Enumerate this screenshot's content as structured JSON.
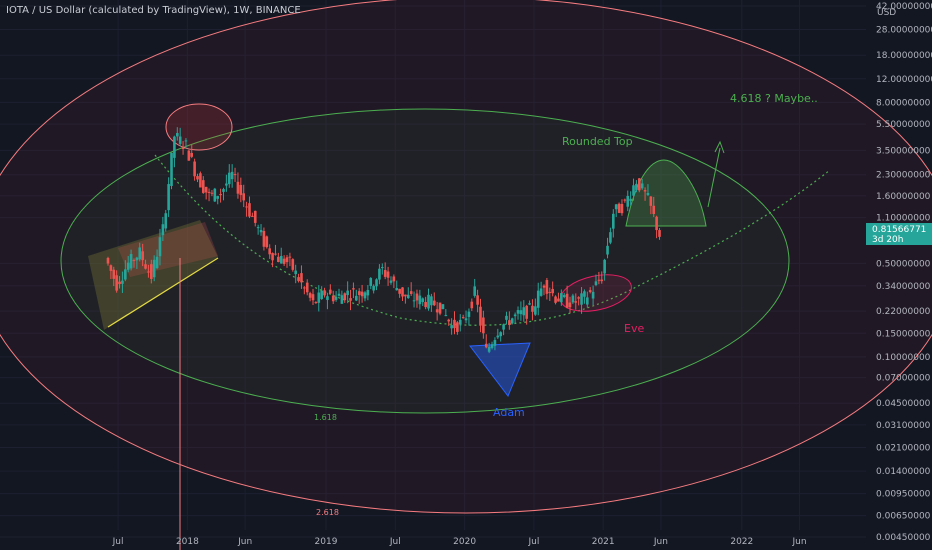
{
  "header": {
    "symbol": "IOTA / US Dollar (calculated by TradingView), 1W, BINANCE"
  },
  "price_axis": {
    "currency": "USD",
    "ticks": [
      "42.00000000",
      "28.00000000",
      "18.00000000",
      "12.00000000",
      "8.00000000",
      "5.50000000",
      "3.50000000",
      "2.30000000",
      "1.60000000",
      "1.10000000",
      "0.50000000",
      "0.34000000",
      "0.22000000",
      "0.15000000",
      "0.10000000",
      "0.07000000",
      "0.04500000",
      "0.03100000",
      "0.02100000",
      "0.01400000",
      "0.00950000",
      "0.00650000",
      "0.00450000"
    ],
    "current_price": "0.81566771",
    "countdown": "3d 20h"
  },
  "time_axis": {
    "ticks": [
      "Jul",
      "2018",
      "Jun",
      "2019",
      "Jul",
      "2020",
      "Jul",
      "2021",
      "Jun",
      "2022",
      "Jun"
    ]
  },
  "annotations": {
    "rounded_top": "Rounded Top",
    "target": "4.618 ? Maybe..",
    "eve": "Eve",
    "adam": "Adam",
    "fib_inner": "1.618",
    "fib_outer": "2.618"
  },
  "colors": {
    "background": "#131722",
    "candle_up": "#26a69a",
    "candle_down": "#ef5350",
    "inner_ellipse": "#4caf50",
    "outer_ellipse": "#f77c80",
    "adam": "#2962ff",
    "eve": "#e91e63",
    "price_label": "#26a69a"
  },
  "chart_data": {
    "type": "candlestick",
    "title": "IOTA / US Dollar (calculated by TradingView), 1W, BINANCE",
    "y_scale": "log",
    "ylim": [
      0.0045,
      42
    ],
    "x_range": [
      "2017-05",
      "2022-09"
    ],
    "last_price": 0.81566771,
    "series": [
      {
        "name": "price path (approx weekly closes)",
        "points": [
          [
            "2017-06",
            0.55
          ],
          [
            "2017-07",
            0.35
          ],
          [
            "2017-08",
            0.5
          ],
          [
            "2017-09",
            0.6
          ],
          [
            "2017-10",
            0.4
          ],
          [
            "2017-11",
            0.9
          ],
          [
            "2017-12",
            4.5
          ],
          [
            "2018-01",
            3.8
          ],
          [
            "2018-02",
            2.2
          ],
          [
            "2018-03",
            1.6
          ],
          [
            "2018-04",
            1.7
          ],
          [
            "2018-05",
            2.3
          ],
          [
            "2018-06",
            1.5
          ],
          [
            "2018-07",
            1.0
          ],
          [
            "2018-08",
            0.65
          ],
          [
            "2018-09",
            0.55
          ],
          [
            "2018-10",
            0.5
          ],
          [
            "2018-11",
            0.35
          ],
          [
            "2018-12",
            0.25
          ],
          [
            "2019-01",
            0.3
          ],
          [
            "2019-02",
            0.28
          ],
          [
            "2019-03",
            0.3
          ],
          [
            "2019-04",
            0.3
          ],
          [
            "2019-05",
            0.35
          ],
          [
            "2019-06",
            0.45
          ],
          [
            "2019-07",
            0.35
          ],
          [
            "2019-08",
            0.28
          ],
          [
            "2019-09",
            0.27
          ],
          [
            "2019-10",
            0.26
          ],
          [
            "2019-11",
            0.24
          ],
          [
            "2019-12",
            0.17
          ],
          [
            "2020-01",
            0.18
          ],
          [
            "2020-02",
            0.3
          ],
          [
            "2020-03",
            0.11
          ],
          [
            "2020-04",
            0.16
          ],
          [
            "2020-05",
            0.19
          ],
          [
            "2020-06",
            0.21
          ],
          [
            "2020-07",
            0.23
          ],
          [
            "2020-08",
            0.36
          ],
          [
            "2020-09",
            0.28
          ],
          [
            "2020-10",
            0.26
          ],
          [
            "2020-11",
            0.26
          ],
          [
            "2020-12",
            0.3
          ],
          [
            "2021-01",
            0.4
          ],
          [
            "2021-02",
            1.2
          ],
          [
            "2021-03",
            1.4
          ],
          [
            "2021-04",
            2.1
          ],
          [
            "2021-05",
            1.5
          ],
          [
            "2021-06",
            0.82
          ]
        ]
      }
    ],
    "annotations": [
      "Rounded Top",
      "4.618 ? Maybe..",
      "Eve",
      "Adam",
      "1.618",
      "2.618"
    ]
  }
}
